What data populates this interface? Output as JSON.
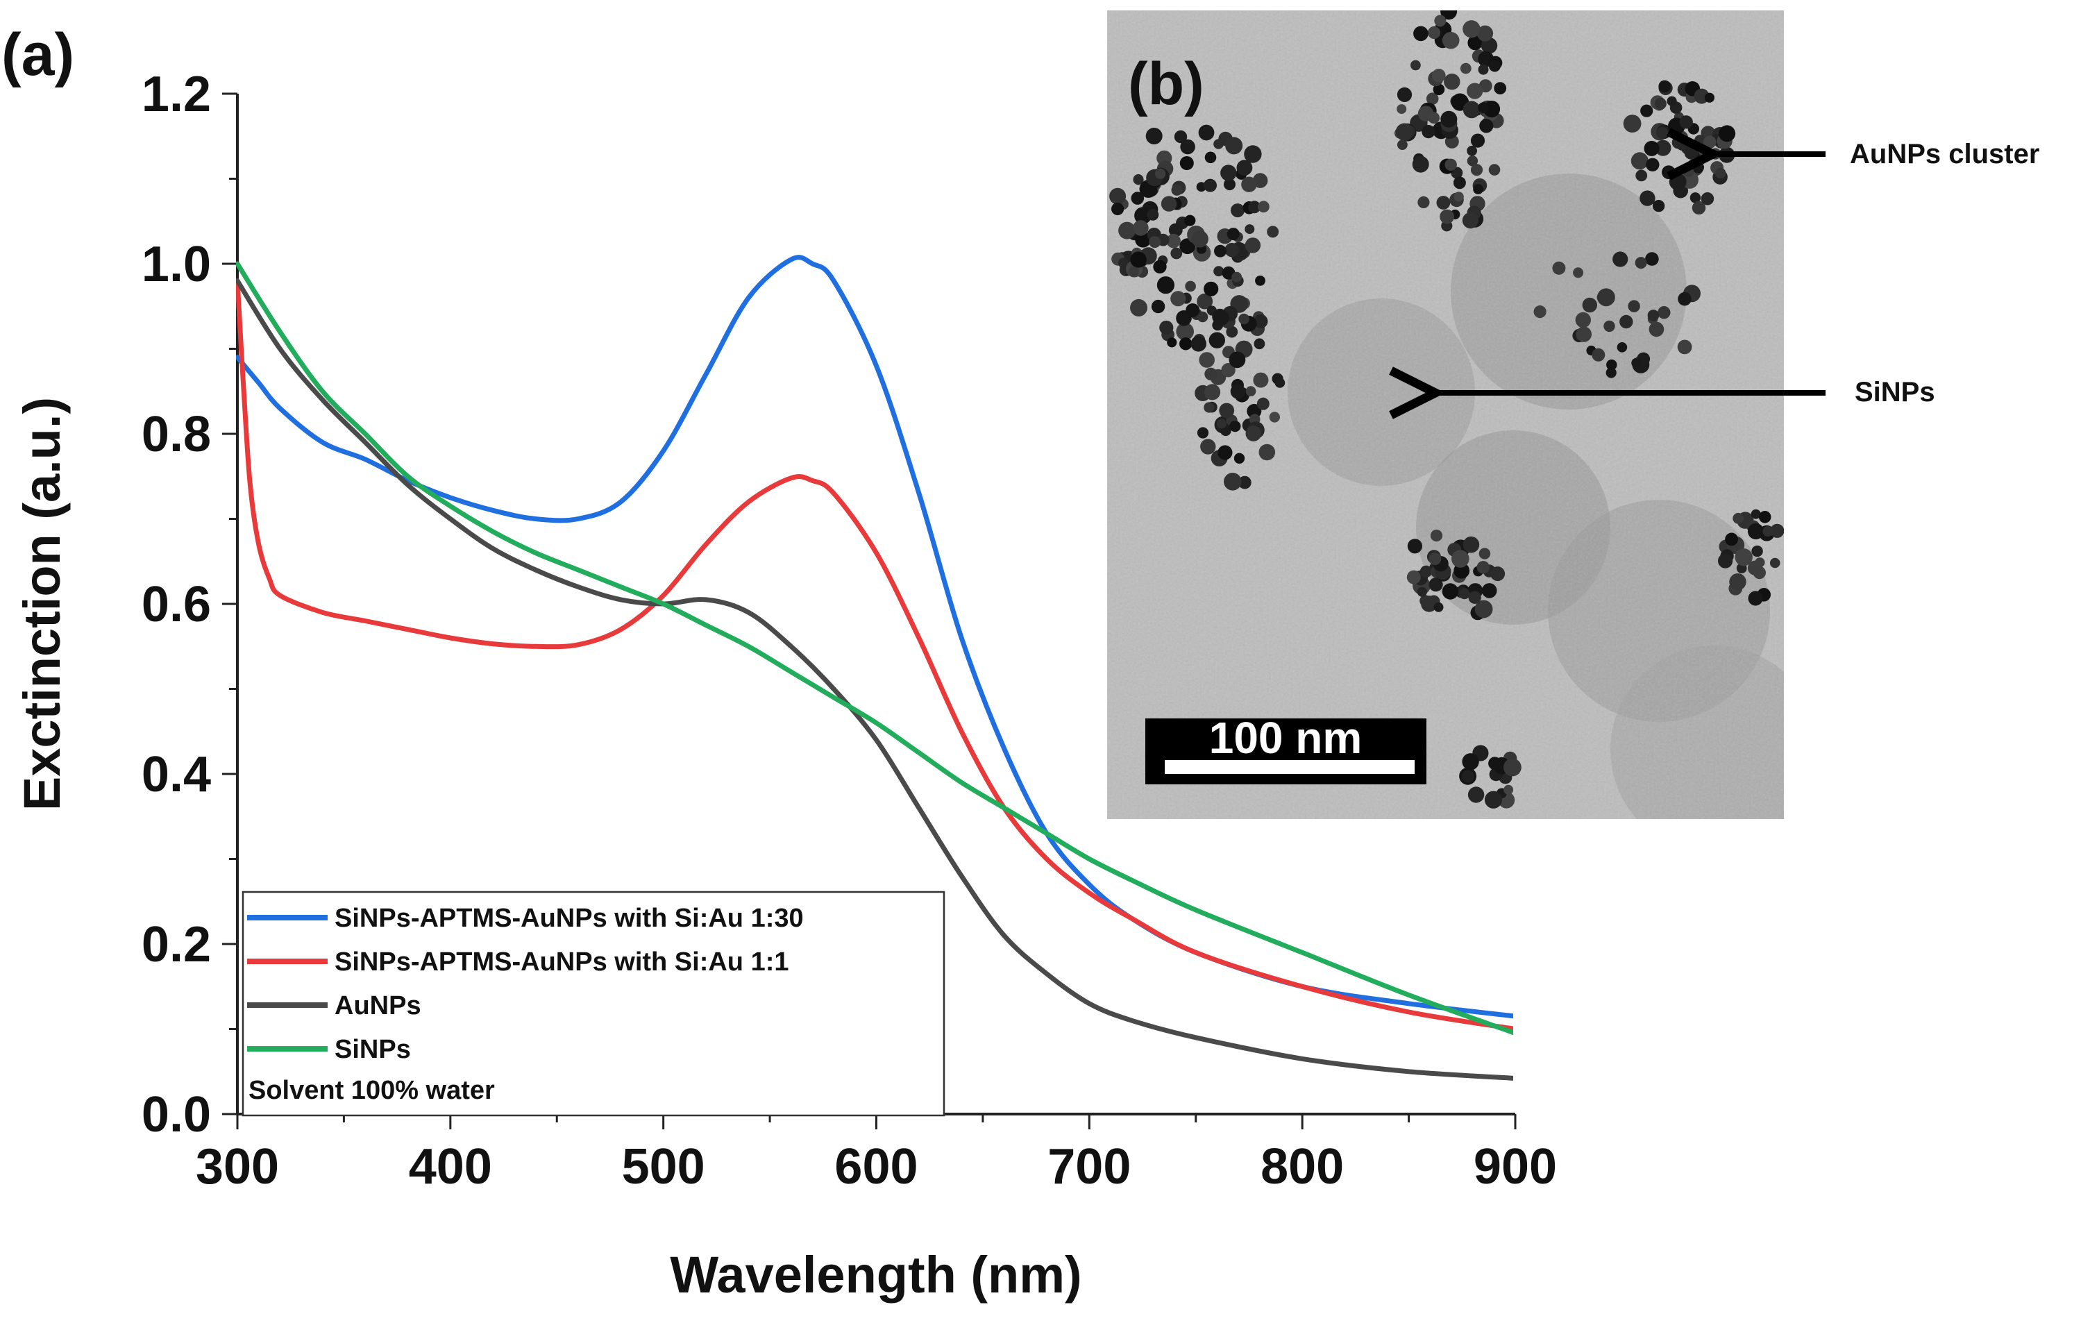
{
  "panel_a_label": "(a)",
  "panel_b_label": "(b)",
  "chart_data": {
    "type": "line",
    "xlabel": "Wavelength (nm)",
    "ylabel": "Exctinction (a.u.)",
    "xlim": [
      300,
      900
    ],
    "ylim": [
      0.0,
      1.2
    ],
    "xticks": [
      "300",
      "400",
      "500",
      "600",
      "700",
      "800",
      "900"
    ],
    "yticks": [
      "0.0",
      "0.2",
      "0.4",
      "0.6",
      "0.8",
      "1.0",
      "1.2"
    ],
    "grid": false,
    "legend_position": "bottom-left",
    "legend_note": "Solvent 100% water",
    "series": [
      {
        "name": "SiNPs-APTMS-AuNPs with Si:Au 1:30",
        "color": "#1f6fe0",
        "x": [
          300,
          310,
          320,
          340,
          360,
          380,
          400,
          420,
          440,
          460,
          480,
          500,
          520,
          540,
          560,
          570,
          580,
          600,
          620,
          640,
          660,
          680,
          700,
          720,
          750,
          800,
          850,
          900
        ],
        "y": [
          0.89,
          0.86,
          0.83,
          0.79,
          0.77,
          0.745,
          0.725,
          0.71,
          0.7,
          0.7,
          0.72,
          0.78,
          0.87,
          0.96,
          1.005,
          1.0,
          0.98,
          0.88,
          0.73,
          0.56,
          0.43,
          0.33,
          0.27,
          0.23,
          0.19,
          0.15,
          0.13,
          0.115
        ]
      },
      {
        "name": "SiNPs-APTMS-AuNPs with Si:Au 1:1",
        "color": "#e83a3a",
        "x": [
          300,
          303,
          306,
          310,
          315,
          320,
          340,
          360,
          380,
          400,
          420,
          440,
          460,
          480,
          500,
          520,
          540,
          560,
          570,
          580,
          600,
          620,
          640,
          660,
          680,
          700,
          720,
          750,
          800,
          850,
          900
        ],
        "y": [
          0.98,
          0.85,
          0.74,
          0.67,
          0.63,
          0.61,
          0.59,
          0.58,
          0.57,
          0.56,
          0.553,
          0.55,
          0.552,
          0.57,
          0.61,
          0.67,
          0.72,
          0.748,
          0.745,
          0.73,
          0.66,
          0.56,
          0.45,
          0.36,
          0.3,
          0.26,
          0.23,
          0.19,
          0.15,
          0.12,
          0.1
        ]
      },
      {
        "name": "AuNPs",
        "color": "#4a4a4a",
        "x": [
          300,
          320,
          340,
          360,
          380,
          400,
          420,
          440,
          460,
          480,
          500,
          520,
          540,
          560,
          580,
          600,
          620,
          640,
          660,
          680,
          700,
          720,
          750,
          800,
          850,
          900
        ],
        "y": [
          0.98,
          0.9,
          0.84,
          0.79,
          0.74,
          0.7,
          0.665,
          0.64,
          0.62,
          0.605,
          0.6,
          0.605,
          0.59,
          0.55,
          0.5,
          0.44,
          0.36,
          0.28,
          0.21,
          0.165,
          0.13,
          0.11,
          0.09,
          0.065,
          0.05,
          0.042
        ]
      },
      {
        "name": "SiNPs",
        "color": "#22ad5c",
        "x": [
          300,
          320,
          340,
          360,
          380,
          400,
          420,
          440,
          460,
          480,
          500,
          520,
          540,
          560,
          580,
          600,
          620,
          640,
          660,
          680,
          700,
          720,
          750,
          800,
          850,
          900
        ],
        "y": [
          1.0,
          0.92,
          0.85,
          0.8,
          0.75,
          0.715,
          0.685,
          0.66,
          0.64,
          0.62,
          0.6,
          0.575,
          0.55,
          0.52,
          0.49,
          0.46,
          0.425,
          0.39,
          0.36,
          0.33,
          0.3,
          0.275,
          0.24,
          0.19,
          0.14,
          0.095
        ]
      }
    ]
  },
  "inset": {
    "scale_bar_label": "100 nm",
    "annotations": [
      {
        "id": "aunps-cluster",
        "label": "AuNPs cluster"
      },
      {
        "id": "sinps",
        "label": "SiNPs"
      }
    ]
  }
}
